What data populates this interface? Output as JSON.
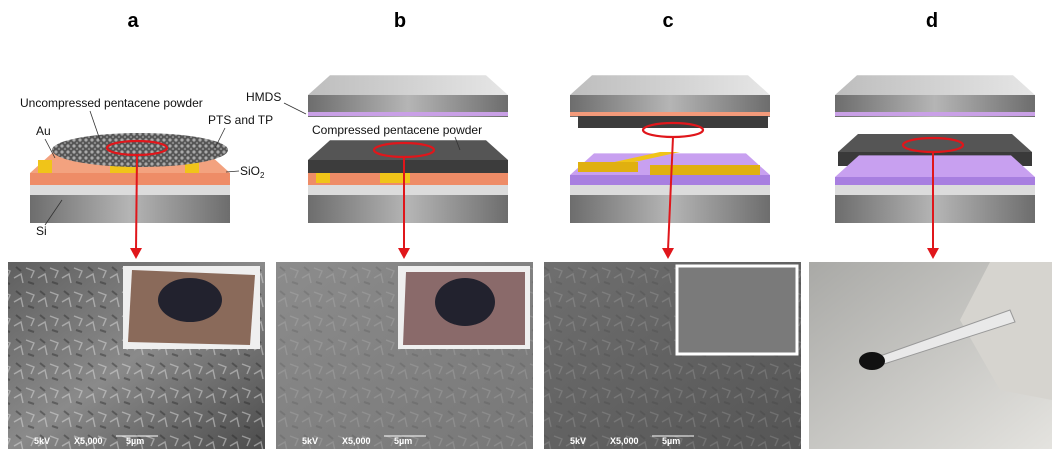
{
  "panels": [
    {
      "label": "a",
      "annotations": [
        "Uncompressed pentacene powder",
        "Au",
        "PTS and TP",
        {
          "text": "SiO",
          "sub": "2"
        },
        "Si"
      ],
      "sem": {
        "voltage": "5kV",
        "magnification": "X5,000",
        "scale": "5µm"
      }
    },
    {
      "label": "b",
      "annotations": [
        "HMDS",
        "Compressed pentacene powder"
      ],
      "sem": {
        "voltage": "5kV",
        "magnification": "X5,000",
        "scale": "5µm"
      }
    },
    {
      "label": "c",
      "sem": {
        "voltage": "5kV",
        "magnification": "X5,000",
        "scale": "5µm"
      }
    },
    {
      "label": "d"
    }
  ]
}
